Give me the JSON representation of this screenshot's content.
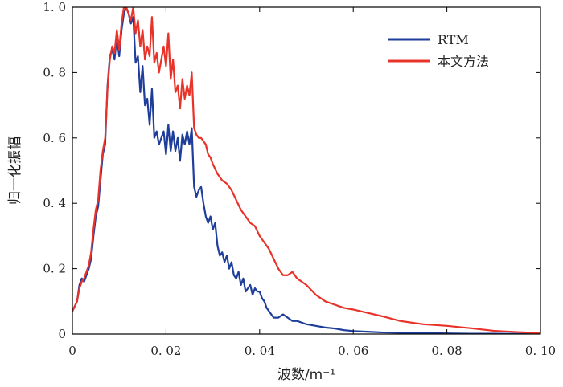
{
  "chart_data": {
    "type": "line",
    "title": "",
    "xlabel": "波数/m⁻¹",
    "ylabel": "归一化振幅",
    "xlim": [
      0,
      0.1
    ],
    "ylim": [
      0,
      1.0
    ],
    "x_ticks": [
      0,
      0.02,
      0.04,
      0.06,
      0.08,
      0.1
    ],
    "x_tick_labels": [
      "0",
      "0. 02",
      "0. 04",
      "0. 06",
      "0. 08",
      "0. 10"
    ],
    "y_ticks": [
      0,
      0.2,
      0.4,
      0.6,
      0.8,
      1.0
    ],
    "y_tick_labels": [
      "0",
      "0. 2",
      "0. 4",
      "0. 6",
      "0. 8",
      "1. 0"
    ],
    "grid": false,
    "legend_position": "top-right",
    "series": [
      {
        "name": "RTM",
        "color": "#1f3e9b",
        "x": [
          0,
          0.001,
          0.0015,
          0.002,
          0.0025,
          0.003,
          0.0035,
          0.004,
          0.0045,
          0.005,
          0.0055,
          0.006,
          0.0065,
          0.007,
          0.0075,
          0.008,
          0.0085,
          0.009,
          0.0095,
          0.01,
          0.0105,
          0.011,
          0.0115,
          0.012,
          0.0125,
          0.013,
          0.0135,
          0.014,
          0.0145,
          0.015,
          0.0155,
          0.016,
          0.0165,
          0.017,
          0.0175,
          0.018,
          0.0185,
          0.019,
          0.0195,
          0.02,
          0.0205,
          0.021,
          0.0215,
          0.022,
          0.0225,
          0.023,
          0.0235,
          0.024,
          0.0245,
          0.025,
          0.0255,
          0.026,
          0.0265,
          0.027,
          0.0275,
          0.028,
          0.0285,
          0.029,
          0.0295,
          0.03,
          0.0305,
          0.031,
          0.0315,
          0.032,
          0.0325,
          0.033,
          0.0335,
          0.034,
          0.0345,
          0.035,
          0.0355,
          0.036,
          0.0365,
          0.037,
          0.0375,
          0.038,
          0.0385,
          0.039,
          0.0395,
          0.04,
          0.0405,
          0.041,
          0.0415,
          0.042,
          0.0425,
          0.043,
          0.0435,
          0.044,
          0.045,
          0.046,
          0.047,
          0.048,
          0.049,
          0.05,
          0.052,
          0.054,
          0.056,
          0.058,
          0.06,
          0.063,
          0.066,
          0.07,
          0.075,
          0.08,
          0.085,
          0.09,
          0.095,
          0.1
        ],
        "y": [
          0.07,
          0.1,
          0.15,
          0.17,
          0.16,
          0.18,
          0.2,
          0.23,
          0.3,
          0.36,
          0.39,
          0.47,
          0.55,
          0.58,
          0.76,
          0.85,
          0.87,
          0.84,
          0.91,
          0.85,
          0.93,
          0.98,
          1.0,
          0.98,
          0.95,
          0.97,
          0.83,
          0.85,
          0.74,
          0.82,
          0.7,
          0.72,
          0.64,
          0.75,
          0.6,
          0.62,
          0.58,
          0.6,
          0.62,
          0.55,
          0.64,
          0.56,
          0.62,
          0.56,
          0.6,
          0.53,
          0.61,
          0.58,
          0.62,
          0.58,
          0.63,
          0.45,
          0.42,
          0.44,
          0.45,
          0.4,
          0.36,
          0.34,
          0.36,
          0.32,
          0.34,
          0.27,
          0.24,
          0.25,
          0.22,
          0.24,
          0.2,
          0.22,
          0.18,
          0.17,
          0.19,
          0.15,
          0.17,
          0.13,
          0.14,
          0.15,
          0.12,
          0.14,
          0.13,
          0.13,
          0.11,
          0.1,
          0.08,
          0.07,
          0.06,
          0.05,
          0.05,
          0.05,
          0.06,
          0.05,
          0.04,
          0.04,
          0.035,
          0.03,
          0.025,
          0.02,
          0.017,
          0.012,
          0.009,
          0.007,
          0.005,
          0.004,
          0.003,
          0.002,
          0.001,
          0.001,
          0.0005,
          0.0
        ]
      },
      {
        "name": "本文方法",
        "color": "#e8332a",
        "x": [
          0,
          0.001,
          0.0015,
          0.002,
          0.0025,
          0.003,
          0.0035,
          0.004,
          0.0045,
          0.005,
          0.0055,
          0.006,
          0.0065,
          0.007,
          0.0075,
          0.008,
          0.0085,
          0.009,
          0.0095,
          0.01,
          0.0105,
          0.011,
          0.0115,
          0.012,
          0.0125,
          0.013,
          0.0135,
          0.014,
          0.0145,
          0.015,
          0.0155,
          0.016,
          0.0165,
          0.017,
          0.0175,
          0.018,
          0.0185,
          0.019,
          0.0195,
          0.02,
          0.0205,
          0.021,
          0.0215,
          0.022,
          0.0225,
          0.023,
          0.0235,
          0.024,
          0.0245,
          0.025,
          0.0255,
          0.026,
          0.0265,
          0.027,
          0.0275,
          0.028,
          0.0285,
          0.029,
          0.0295,
          0.03,
          0.031,
          0.032,
          0.033,
          0.034,
          0.035,
          0.036,
          0.037,
          0.038,
          0.039,
          0.04,
          0.041,
          0.042,
          0.043,
          0.044,
          0.045,
          0.046,
          0.047,
          0.048,
          0.049,
          0.05,
          0.052,
          0.054,
          0.056,
          0.058,
          0.06,
          0.063,
          0.066,
          0.07,
          0.075,
          0.08,
          0.085,
          0.09,
          0.095,
          0.1
        ],
        "y": [
          0.07,
          0.1,
          0.14,
          0.16,
          0.17,
          0.19,
          0.21,
          0.25,
          0.32,
          0.38,
          0.41,
          0.5,
          0.56,
          0.6,
          0.75,
          0.84,
          0.88,
          0.86,
          0.93,
          0.87,
          0.95,
          1.0,
          1.0,
          0.98,
          0.96,
          1.0,
          0.92,
          0.96,
          0.88,
          0.93,
          0.84,
          0.88,
          0.85,
          0.97,
          0.83,
          0.86,
          0.8,
          0.84,
          0.88,
          0.82,
          0.92,
          0.78,
          0.84,
          0.74,
          0.76,
          0.69,
          0.78,
          0.72,
          0.76,
          0.73,
          0.8,
          0.63,
          0.61,
          0.6,
          0.6,
          0.59,
          0.58,
          0.55,
          0.54,
          0.52,
          0.49,
          0.47,
          0.46,
          0.44,
          0.41,
          0.38,
          0.36,
          0.34,
          0.33,
          0.3,
          0.28,
          0.26,
          0.23,
          0.2,
          0.18,
          0.18,
          0.19,
          0.17,
          0.16,
          0.15,
          0.12,
          0.1,
          0.09,
          0.08,
          0.075,
          0.065,
          0.055,
          0.04,
          0.03,
          0.025,
          0.018,
          0.01,
          0.006,
          0.003
        ]
      }
    ]
  }
}
